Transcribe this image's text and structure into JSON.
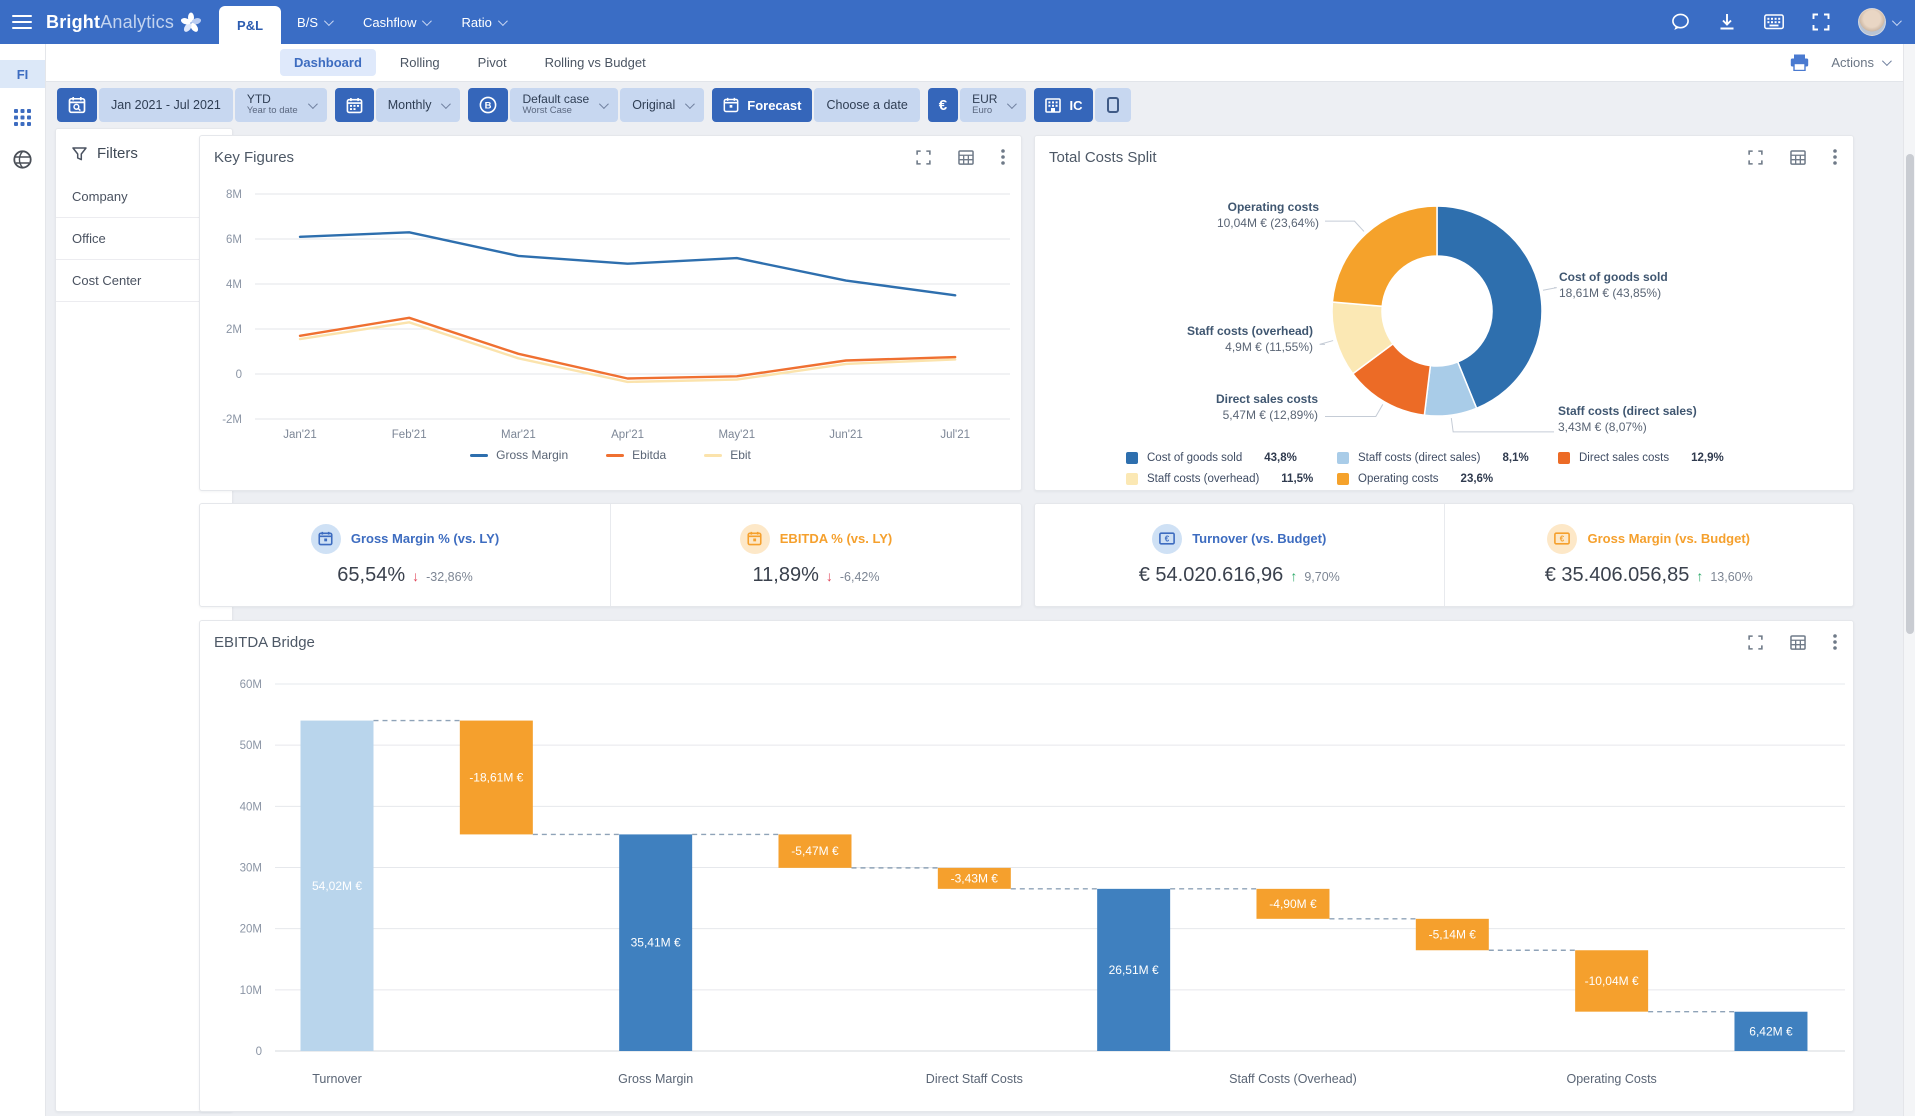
{
  "navbar": {
    "logo_bold": "Bright",
    "logo_light": "Analytics",
    "menu": [
      {
        "label": "P&L",
        "active": true
      },
      {
        "label": "B/S"
      },
      {
        "label": "Cashflow"
      },
      {
        "label": "Ratio"
      }
    ]
  },
  "rail": {
    "fi": "FI"
  },
  "tabs": {
    "items": [
      {
        "label": "Dashboard",
        "active": true
      },
      {
        "label": "Rolling"
      },
      {
        "label": "Pivot"
      },
      {
        "label": "Rolling vs Budget"
      }
    ],
    "actions_label": "Actions"
  },
  "toolbar": {
    "date_range": "Jan 2021 - Jul 2021",
    "ytd": "YTD",
    "ytd_sub": "Year to date",
    "period": "Monthly",
    "case_label": "Default case",
    "case_sub": "Worst Case",
    "version": "Original",
    "forecast": "Forecast",
    "choose_date": "Choose a date",
    "currency_symbol": "€",
    "currency": "EUR",
    "currency_sub": "Euro",
    "ic": "IC"
  },
  "filters": {
    "title": "Filters",
    "items": [
      "Company",
      "Office",
      "Cost Center"
    ]
  },
  "kpis": [
    {
      "title": "Gross Margin % (vs. LY)",
      "value": "65,54%",
      "arrow": "↓",
      "delta": "-32,86%",
      "theme": "blue",
      "direction": "down",
      "icon": "calendar"
    },
    {
      "title": "EBITDA % (vs. LY)",
      "value": "11,89%",
      "arrow": "↓",
      "delta": "-6,42%",
      "theme": "orange",
      "direction": "down",
      "icon": "calendar"
    },
    {
      "title": "Turnover (vs. Budget)",
      "value": "€ 54.020.616,96",
      "arrow": "↑",
      "delta": "9,70%",
      "theme": "blue",
      "direction": "up",
      "icon": "banknote"
    },
    {
      "title": "Gross Margin (vs. Budget)",
      "value": "€ 35.406.056,85",
      "arrow": "↑",
      "delta": "13,60%",
      "theme": "orange",
      "direction": "up",
      "icon": "banknote"
    }
  ],
  "chart_data": [
    {
      "id": "key_figures",
      "type": "line",
      "title": "Key Figures",
      "x": [
        "Jan'21",
        "Feb'21",
        "Mar'21",
        "Apr'21",
        "May'21",
        "Jun'21",
        "Jul'21"
      ],
      "ylim": [
        -2,
        8
      ],
      "grid": true,
      "legend_position": "bottom",
      "yticks": [
        {
          "v": 8,
          "label": "8M"
        },
        {
          "v": 6,
          "label": "6M"
        },
        {
          "v": 4,
          "label": "4M"
        },
        {
          "v": 2,
          "label": "2M"
        },
        {
          "v": 0,
          "label": "0"
        },
        {
          "v": -2,
          "label": "-2M"
        }
      ],
      "series": [
        {
          "name": "Gross Margin",
          "color": "#2e6fae",
          "values": [
            6.1,
            6.3,
            5.25,
            4.9,
            5.15,
            4.15,
            3.5
          ]
        },
        {
          "name": "Ebitda",
          "color": "#ef7031",
          "values": [
            1.7,
            2.5,
            0.9,
            -0.2,
            -0.1,
            0.6,
            0.75
          ]
        },
        {
          "name": "Ebit",
          "color": "#fbe3ac",
          "values": [
            1.55,
            2.3,
            0.7,
            -0.35,
            -0.25,
            0.45,
            0.65
          ]
        }
      ]
    },
    {
      "id": "total_costs",
      "type": "pie",
      "donut": true,
      "title": "Total Costs Split",
      "legend_position": "bottom",
      "slices": [
        {
          "name": "Cost of goods sold",
          "value_label": "18,61M € (43,85%)",
          "pct": 43.85,
          "legend_pct": "43,8%",
          "color": "#2e6fae"
        },
        {
          "name": "Staff costs (direct sales)",
          "value_label": "3,43M € (8,07%)",
          "pct": 8.07,
          "legend_pct": "8,1%",
          "color": "#a9cce8"
        },
        {
          "name": "Direct sales costs",
          "value_label": "5,47M € (12,89%)",
          "pct": 12.89,
          "legend_pct": "12,9%",
          "color": "#ec6b26"
        },
        {
          "name": "Staff costs (overhead)",
          "value_label": "4,9M € (11,55%)",
          "pct": 11.55,
          "legend_pct": "11,5%",
          "color": "#fbe8b4"
        },
        {
          "name": "Operating costs",
          "value_label": "10,04M € (23,64%)",
          "pct": 23.64,
          "legend_pct": "23,6%",
          "color": "#f5a22b"
        }
      ]
    },
    {
      "id": "ebitda_bridge",
      "type": "bar",
      "subtype": "waterfall",
      "title": "EBITDA Bridge",
      "ylim": [
        0,
        60
      ],
      "yticks": [
        {
          "v": 0,
          "label": "0"
        },
        {
          "v": 10,
          "label": "10M"
        },
        {
          "v": 20,
          "label": "20M"
        },
        {
          "v": 30,
          "label": "30M"
        },
        {
          "v": 40,
          "label": "40M"
        },
        {
          "v": 50,
          "label": "50M"
        },
        {
          "v": 60,
          "label": "60M"
        }
      ],
      "colors": {
        "total_light": "#b9d5ec",
        "total": "#3f80bf",
        "decrease": "#f5a02d"
      },
      "bars": [
        {
          "from": 0,
          "to": 54.02,
          "label": "54,02M €",
          "kind": "total_light"
        },
        {
          "from": 35.41,
          "to": 54.02,
          "label": "-18,61M €",
          "kind": "decrease"
        },
        {
          "from": 0,
          "to": 35.41,
          "label": "35,41M €",
          "kind": "total"
        },
        {
          "from": 29.94,
          "to": 35.41,
          "label": "-5,47M €",
          "kind": "decrease"
        },
        {
          "from": 26.51,
          "to": 29.94,
          "label": "-3,43M €",
          "kind": "decrease"
        },
        {
          "from": 0,
          "to": 26.51,
          "label": "26,51M €",
          "kind": "total"
        },
        {
          "from": 21.61,
          "to": 26.51,
          "label": "-4,90M €",
          "kind": "decrease"
        },
        {
          "from": 16.47,
          "to": 21.61,
          "label": "-5,14M €",
          "kind": "decrease"
        },
        {
          "from": 6.43,
          "to": 16.47,
          "label": "-10,04M €",
          "kind": "decrease"
        },
        {
          "from": 0,
          "to": 6.42,
          "label": "6,42M €",
          "kind": "total"
        }
      ],
      "category_labels": [
        {
          "text": "Turnover",
          "bar": 0
        },
        {
          "text": "Gross Margin",
          "bar": 2
        },
        {
          "text": "Direct Staff Costs",
          "bar": 4
        },
        {
          "text": "Staff Costs (Overhead)",
          "bar": 6
        },
        {
          "text": "Operating Costs",
          "bar": 8
        }
      ]
    }
  ]
}
